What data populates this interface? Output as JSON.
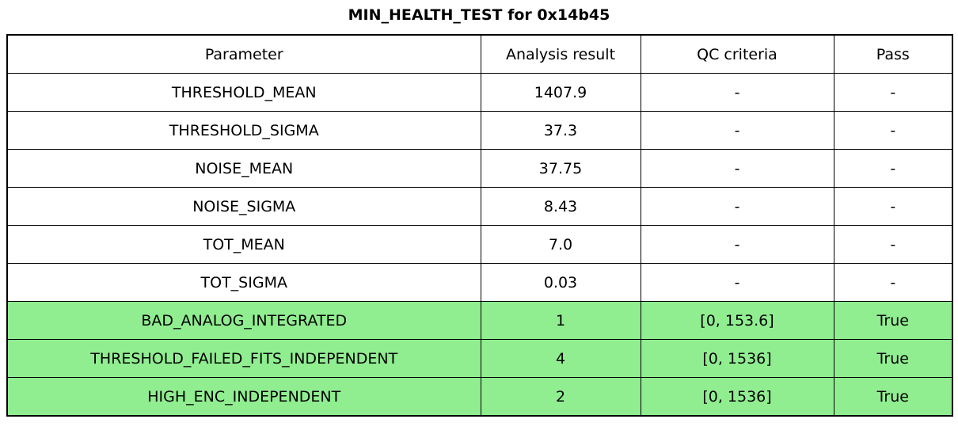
{
  "chart_data": {
    "type": "table",
    "title": "MIN_HEALTH_TEST for 0x14b45",
    "columns": [
      "Parameter",
      "Analysis result",
      "QC criteria",
      "Pass"
    ],
    "rows": [
      {
        "parameter": "THRESHOLD_MEAN",
        "analysis_result": "1407.9",
        "qc_criteria": "-",
        "pass": "-",
        "highlighted": false
      },
      {
        "parameter": "THRESHOLD_SIGMA",
        "analysis_result": "37.3",
        "qc_criteria": "-",
        "pass": "-",
        "highlighted": false
      },
      {
        "parameter": "NOISE_MEAN",
        "analysis_result": "37.75",
        "qc_criteria": "-",
        "pass": "-",
        "highlighted": false
      },
      {
        "parameter": "NOISE_SIGMA",
        "analysis_result": "8.43",
        "qc_criteria": "-",
        "pass": "-",
        "highlighted": false
      },
      {
        "parameter": "TOT_MEAN",
        "analysis_result": "7.0",
        "qc_criteria": "-",
        "pass": "-",
        "highlighted": false
      },
      {
        "parameter": "TOT_SIGMA",
        "analysis_result": "0.03",
        "qc_criteria": "-",
        "pass": "-",
        "highlighted": false
      },
      {
        "parameter": "BAD_ANALOG_INTEGRATED",
        "analysis_result": "1",
        "qc_criteria": "[0, 153.6]",
        "pass": "True",
        "highlighted": true
      },
      {
        "parameter": "THRESHOLD_FAILED_FITS_INDEPENDENT",
        "analysis_result": "4",
        "qc_criteria": "[0, 1536]",
        "pass": "True",
        "highlighted": true
      },
      {
        "parameter": "HIGH_ENC_INDEPENDENT",
        "analysis_result": "2",
        "qc_criteria": "[0, 1536]",
        "pass": "True",
        "highlighted": true
      }
    ],
    "layout": {
      "grid": true,
      "legend": false
    }
  },
  "colors": {
    "highlight_row_bg": "#90EE90",
    "border": "#000000",
    "background": "#FFFFFF",
    "text": "#000000"
  }
}
